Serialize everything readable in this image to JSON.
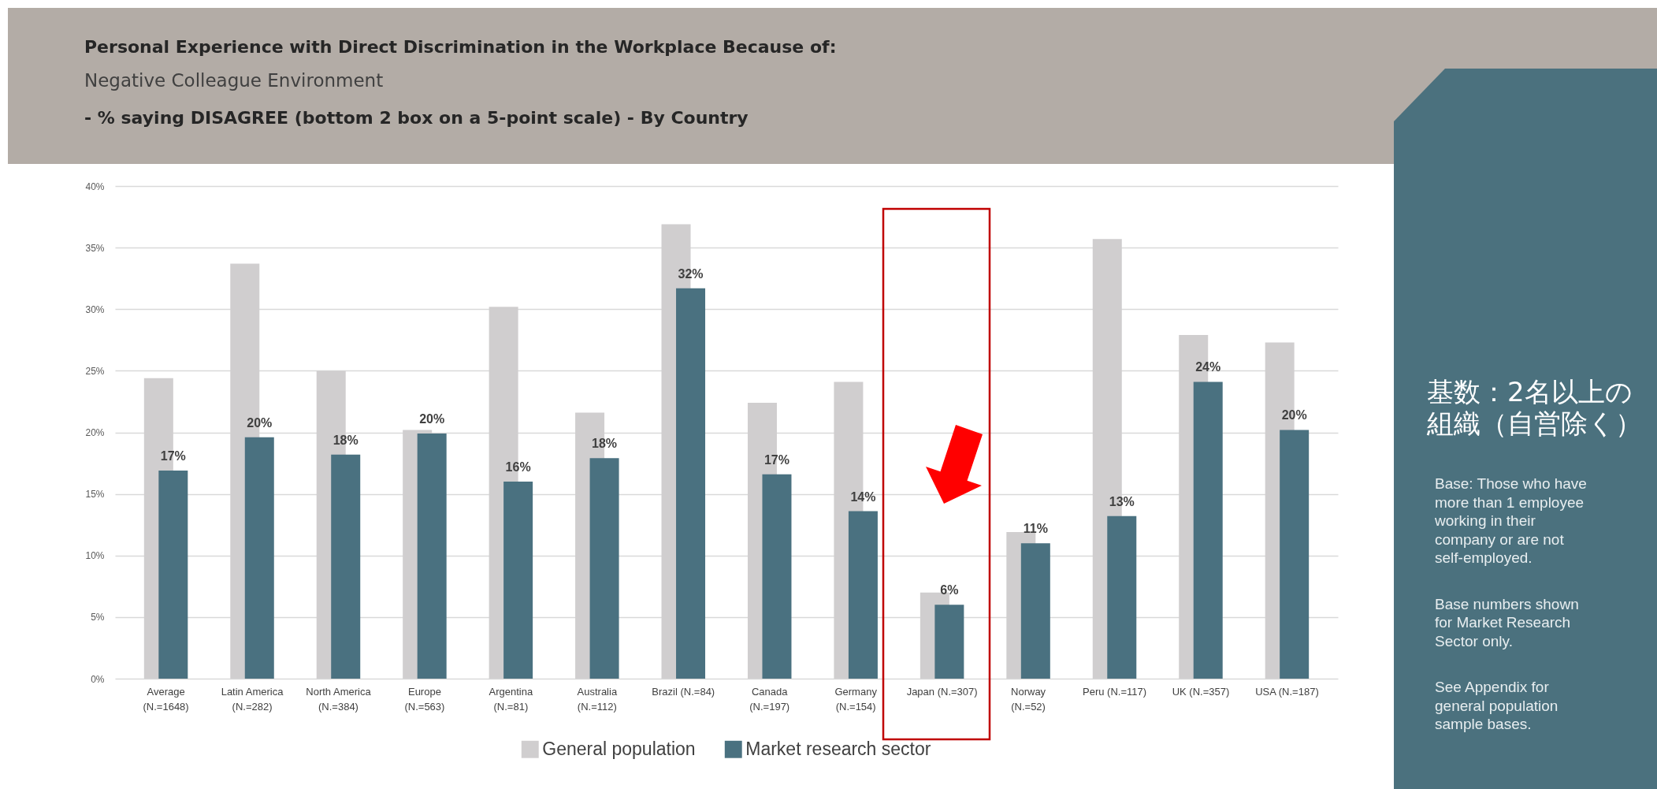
{
  "chart_data": {
    "type": "bar",
    "title": "Personal Experience with Direct Discrimination in the Workplace Because of:",
    "subtitle": "Negative Colleague Environment",
    "categories": [
      "Average (N.=1648)",
      "Latin America (N.=282)",
      "North America (N.=384)",
      "Europe (N.=563)",
      "Argentina (N.=81)",
      "Australia (N.=112)",
      "Brazil (N.=84)",
      "Canada (N.=197)",
      "Germany (N.=154)",
      "Japan (N.=307)",
      "Norway (N.=52)",
      "Peru (N.=117)",
      "UK (N.=357)",
      "USA (N.=187)"
    ],
    "series": [
      {
        "name": "General population",
        "color": "#d0cecf",
        "values": [
          24.4,
          33.7,
          25.0,
          20.2,
          30.2,
          21.6,
          36.9,
          22.4,
          24.1,
          7.0,
          11.9,
          35.7,
          27.9,
          27.3
        ]
      },
      {
        "name": "Market research sector",
        "color": "#4a7180",
        "values": [
          16.9,
          19.6,
          18.2,
          19.9,
          16.0,
          17.9,
          31.7,
          16.6,
          13.6,
          6.0,
          11.0,
          13.2,
          24.1,
          20.2
        ],
        "value_labels": [
          "17%",
          "20%",
          "18%",
          "20%",
          "16%",
          "18%",
          "32%",
          "17%",
          "14%",
          "6%",
          "11%",
          "13%",
          "24%",
          "20%"
        ]
      }
    ],
    "ylim": [
      0,
      40
    ],
    "yticks": [
      {
        "value": 0,
        "label": "0%"
      },
      {
        "value": 5,
        "label": "5%"
      },
      {
        "value": 10,
        "label": "10%"
      },
      {
        "value": 15,
        "label": "15%"
      },
      {
        "value": 20,
        "label": "20%"
      },
      {
        "value": 25,
        "label": "25%"
      },
      {
        "value": 30,
        "label": "30%"
      },
      {
        "value": 35,
        "label": "35%"
      },
      {
        "value": 40,
        "label": "40%"
      }
    ],
    "grid": "y",
    "legend": "bottom",
    "annotations": [
      "- % saying DISAGREE (bottom 2 box on a 5-point scale) - By Country",
      "基数：2名以上の組織（自営除く）",
      "Base: Those who have more than 1 employee working in their company or are not self-employed.",
      "Base numbers shown for Market Research Sector only.",
      "See Appendix for general population sample bases."
    ]
  }
}
